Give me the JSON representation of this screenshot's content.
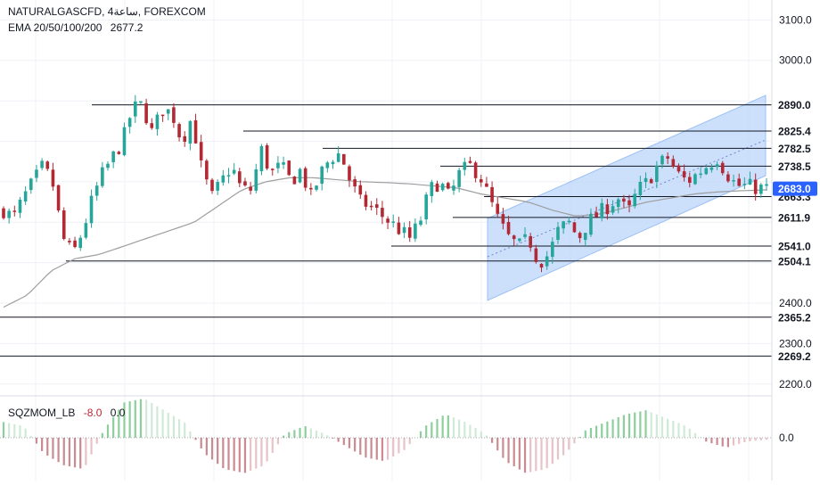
{
  "header": {
    "symbol_line": "NATURALGASCFD, 4ساعة, FOREXCOM",
    "indicator_name": "EMA 20/50/100/200",
    "indicator_value": "2677.2"
  },
  "oscillator": {
    "name": "SQZMOM_LB",
    "value_1": "-8.0",
    "value_2": "0.0",
    "zero_label": "0.0"
  },
  "colors": {
    "background": "#ffffff",
    "grid": "#eef1f6",
    "bull_candle": "#26a69a",
    "bear_candle": "#b22833",
    "ema": "#9e9e9e",
    "level_line": "#131722",
    "channel_fill": "#bbd6fb",
    "current_price_badge": "#2962ff",
    "osc_pos_strong": "#8ccf9d",
    "osc_pos_weak": "#cfead6",
    "osc_neg_strong": "#c98a91",
    "osc_neg_weak": "#e7c2c6"
  },
  "chart_data": {
    "type": "candlestick",
    "price_axis": {
      "ticks": [
        "3100.0",
        "3000.0",
        "2400.0",
        "2300.0",
        "2200.0"
      ],
      "range": [
        2175,
        3125
      ],
      "grid": true
    },
    "horizontal_levels": [
      {
        "value": 2890.0,
        "label": "2890.0"
      },
      {
        "value": 2825.4,
        "label": "2825.4"
      },
      {
        "value": 2782.5,
        "label": "2782.5"
      },
      {
        "value": 2738.5,
        "label": "2738.5"
      },
      {
        "value": 2663.3,
        "label": "2663.3"
      },
      {
        "value": 2611.9,
        "label": "2611.9"
      },
      {
        "value": 2541.0,
        "label": "2541.0"
      },
      {
        "value": 2504.1,
        "label": "2504.1"
      },
      {
        "value": 2365.2,
        "label": "2365.2"
      },
      {
        "value": 2269.2,
        "label": "2269.2"
      }
    ],
    "current_price": {
      "value": 2683.0,
      "label": "2683.0"
    },
    "ema_value": 2677.2,
    "candle_count": 140,
    "price_path": [
      2630,
      2610,
      2660,
      2700,
      2740,
      2690,
      2560,
      2520,
      2580,
      2660,
      2720,
      2760,
      2800,
      2880,
      2890,
      2820,
      2880,
      2870,
      2800,
      2860,
      2730,
      2660,
      2700,
      2740,
      2680,
      2680,
      2780,
      2720,
      2740,
      2700,
      2730,
      2660,
      2720,
      2760,
      2770,
      2700,
      2650,
      2640,
      2620,
      2600,
      2580,
      2560,
      2600,
      2680,
      2700,
      2660,
      2720,
      2740,
      2720,
      2660,
      2600,
      2560,
      2540,
      2560,
      2500,
      2520,
      2580,
      2600,
      2560,
      2600,
      2620,
      2640,
      2660,
      2620,
      2680,
      2700,
      2740,
      2760,
      2720,
      2700,
      2720,
      2740,
      2760,
      2720,
      2690,
      2690,
      2685,
      2683
    ],
    "ema_path": [
      2390,
      2420,
      2480,
      2510,
      2520,
      2540,
      2560,
      2580,
      2600,
      2640,
      2680,
      2700,
      2710,
      2710,
      2705,
      2700,
      2698,
      2695,
      2690,
      2685,
      2670,
      2660,
      2650,
      2630,
      2615,
      2620,
      2635,
      2650,
      2660,
      2670,
      2675,
      2678,
      2680
    ]
  },
  "oscillator_data": {
    "type": "histogram",
    "bar_count": 140,
    "path": [
      0.4,
      0.3,
      -0.4,
      -0.7,
      -0.8,
      0.2,
      0.9,
      1.0,
      0.7,
      0.4,
      -0.4,
      -0.8,
      -0.9,
      -0.7,
      0.1,
      0.3,
      0.1,
      -0.2,
      -0.5,
      -0.6,
      -0.3,
      0.3,
      0.6,
      0.4,
      0.1,
      -0.6,
      -0.9,
      -0.8,
      -0.4,
      0.2,
      0.4,
      0.6,
      0.7,
      0.5,
      0.3,
      -0.1,
      -0.25,
      -0.1,
      -0.05
    ]
  }
}
